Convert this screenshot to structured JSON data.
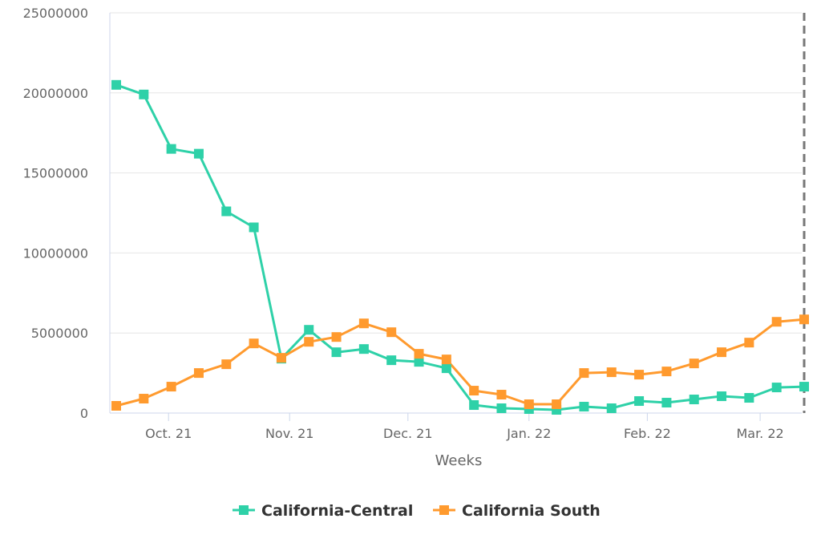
{
  "chart_data": {
    "type": "line",
    "title": "",
    "xlabel": "Weeks",
    "ylabel": "",
    "ylim": [
      0,
      25000000
    ],
    "y_ticks": [
      0,
      5000000,
      10000000,
      15000000,
      20000000,
      25000000
    ],
    "y_tick_labels": [
      "0",
      "5000000",
      "10000000",
      "15000000",
      "20000000",
      "25000000"
    ],
    "x_tick_labels": [
      "Oct. 21",
      "Nov. 21",
      "Dec. 21",
      "Jan. 22",
      "Feb. 22",
      "Mar. 22"
    ],
    "x_tick_weeks": [
      1.9,
      6.3,
      10.6,
      15.0,
      19.3,
      23.4
    ],
    "x_weeks": [
      0,
      1,
      2,
      3,
      4,
      5,
      6,
      7,
      8,
      9,
      10,
      11,
      12,
      13,
      14,
      15,
      16,
      17,
      18,
      19,
      20,
      21,
      22,
      23,
      24,
      25
    ],
    "vertical_marker_week": 25,
    "grid": true,
    "legend_position": "bottom-center",
    "series": [
      {
        "name": "California-Central",
        "color": "#2ed1a8",
        "values": [
          20500000,
          19900000,
          16500000,
          16200000,
          12600000,
          11600000,
          3400000,
          5200000,
          3800000,
          4000000,
          3300000,
          3200000,
          2800000,
          500000,
          300000,
          250000,
          200000,
          400000,
          300000,
          750000,
          650000,
          850000,
          1050000,
          950000,
          1600000,
          1650000
        ]
      },
      {
        "name": "California South",
        "color": "#ff9a2e",
        "values": [
          450000,
          900000,
          1650000,
          2500000,
          3050000,
          4350000,
          3450000,
          4450000,
          4750000,
          5600000,
          5050000,
          3700000,
          3350000,
          1400000,
          1150000,
          550000,
          550000,
          2500000,
          2550000,
          2400000,
          2600000,
          3100000,
          3800000,
          4400000,
          5700000,
          5850000
        ]
      }
    ]
  }
}
